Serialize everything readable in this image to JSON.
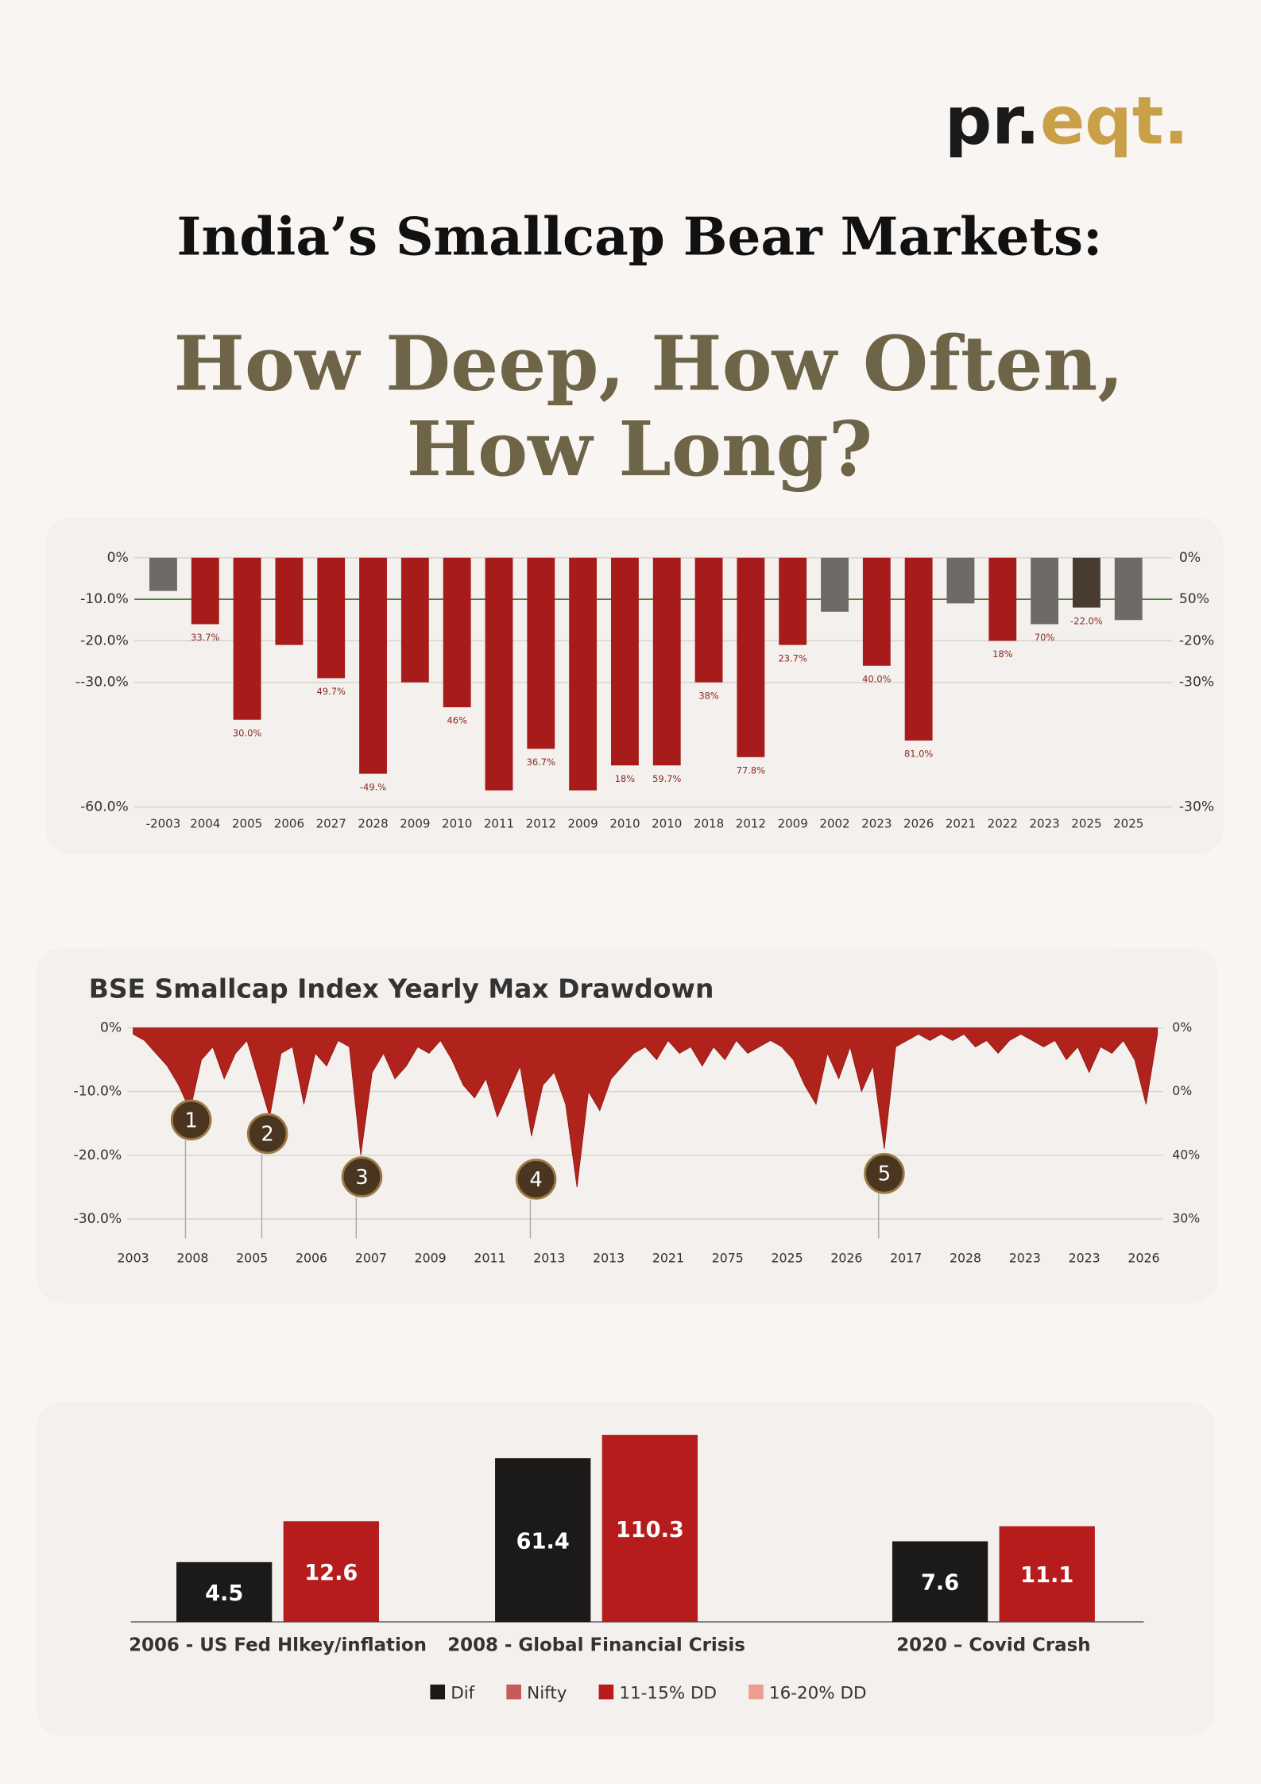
{
  "header": {
    "logo_dark": "pr.",
    "logo_gold": "eqt.",
    "title": "India’s Smallcap Bear Markets:",
    "subtitle": [
      "How Deep, How Often,",
      "How Long?"
    ]
  },
  "chart_data": [
    {
      "type": "bar",
      "categories": [
        "-2003",
        "2004",
        "2005",
        "2006",
        "2027",
        "2028",
        "2009",
        "2010",
        "2011",
        "2012",
        "2009",
        "2010",
        "2010",
        "2018",
        "2012",
        "2009",
        "2002",
        "2023",
        "2026",
        "2021",
        "2022",
        "2023",
        "2025",
        "2025"
      ],
      "values": [
        -8,
        -16,
        -39,
        -21,
        -29,
        -52,
        -30,
        -36,
        -56,
        -46,
        -56,
        -50,
        -50,
        -30,
        -48,
        -21,
        -13,
        -26,
        -44,
        -11,
        -20,
        -16,
        -12,
        -15
      ],
      "colors": [
        "#6e6a66",
        "#a81b1b",
        "#a81b1b",
        "#a81b1b",
        "#a81b1b",
        "#a81b1b",
        "#a81b1b",
        "#a81b1b",
        "#a81b1b",
        "#a81b1b",
        "#a81b1b",
        "#a81b1b",
        "#a81b1b",
        "#a81b1b",
        "#a81b1b",
        "#a81b1b",
        "#6e6a66",
        "#a81b1b",
        "#a81b1b",
        "#6e6a66",
        "#a81b1b",
        "#6e6a66",
        "#4a3b30",
        "#6e6a66"
      ],
      "annotations": [
        null,
        "33.7%",
        "30.0%",
        null,
        "49.7%",
        "-49.%",
        null,
        "46%",
        null,
        "36.7%",
        null,
        "18%",
        "59.7%",
        "38%",
        "77.8%",
        "23.7%",
        null,
        "40.0%",
        "81.0%",
        null,
        "18%",
        "70%",
        "-22.0%",
        null
      ],
      "ylim": [
        -60,
        0
      ],
      "yticks": [
        {
          "value": 0,
          "label": "0%"
        },
        {
          "value": -10,
          "label": "-10.0%"
        },
        {
          "value": -20,
          "label": "-20.0%"
        },
        {
          "value": -30,
          "label": "--30.0%"
        },
        {
          "value": -60,
          "label": "-60.0%"
        }
      ],
      "right_labels": [
        "0%",
        "50%",
        "-20%",
        "-30%",
        "-30%"
      ],
      "grid": true
    },
    {
      "type": "area",
      "title": "BSE Smallcap Index Yearly Max Drawdown",
      "color": "#b0231c",
      "values": [
        -1,
        -2,
        -4,
        -6,
        -9,
        -13,
        -5,
        -3,
        -8,
        -4,
        -2,
        -8,
        -14,
        -4,
        -3,
        -12,
        -4,
        -6,
        -2,
        -3,
        -20,
        -7,
        -4,
        -8,
        -6,
        -3,
        -4,
        -2,
        -5,
        -9,
        -11,
        -8,
        -14,
        -10,
        -6,
        -17,
        -9,
        -7,
        -12,
        -25,
        -10,
        -13,
        -8,
        -6,
        -4,
        -3,
        -5,
        -2,
        -4,
        -3,
        -6,
        -3,
        -5,
        -2,
        -4,
        -3,
        -2,
        -3,
        -5,
        -9,
        -12,
        -4,
        -8,
        -3,
        -10,
        -6,
        -19,
        -3,
        -2,
        -1,
        -2,
        -1,
        -2,
        -1,
        -3,
        -2,
        -4,
        -2,
        -1,
        -2,
        -3,
        -2,
        -5,
        -3,
        -7,
        -3,
        -4,
        -2,
        -5,
        -12,
        -1
      ],
      "x_labels": [
        "2003",
        "2008",
        "2005",
        "2006",
        "2007",
        "2009",
        "2011",
        "2013",
        "2013",
        "2021",
        "2075",
        "2025",
        "2026",
        "2017",
        "2028",
        "2023",
        "2023",
        "2026"
      ],
      "ylim": [
        -30,
        0
      ],
      "yticks": [
        {
          "value": 0,
          "label": "0%"
        },
        {
          "value": -10,
          "label": "-10.0%"
        },
        {
          "value": -20,
          "label": "-20.0%"
        },
        {
          "value": -30,
          "label": "-30.0%"
        }
      ],
      "right_labels": [
        "0%",
        "0%",
        "40%",
        "30%"
      ],
      "markers": [
        "1",
        "2",
        "3",
        "4",
        "5"
      ],
      "grid": true
    },
    {
      "type": "grouped_bar",
      "categories": [
        "2006 - US Fed Hlkey/inflation",
        "2008 - Global Financial Crisis",
        "2020 – Covid Crash"
      ],
      "series": [
        {
          "name": "Dif",
          "color": "#1c1a19",
          "values": [
            4.5,
            61.4,
            7.6
          ]
        },
        {
          "name": "Nifty",
          "color": "#c75a5a",
          "values": [
            null,
            null,
            null
          ]
        },
        {
          "name": "11-15% DD",
          "color": "#b71c1c",
          "values": [
            12.6,
            110.3,
            11.1
          ]
        },
        {
          "name": "16-20% DD",
          "color": "#eaa08e",
          "values": [
            null,
            null,
            null
          ]
        }
      ],
      "log_scale": true,
      "ylim": [
        1,
        150
      ]
    }
  ]
}
